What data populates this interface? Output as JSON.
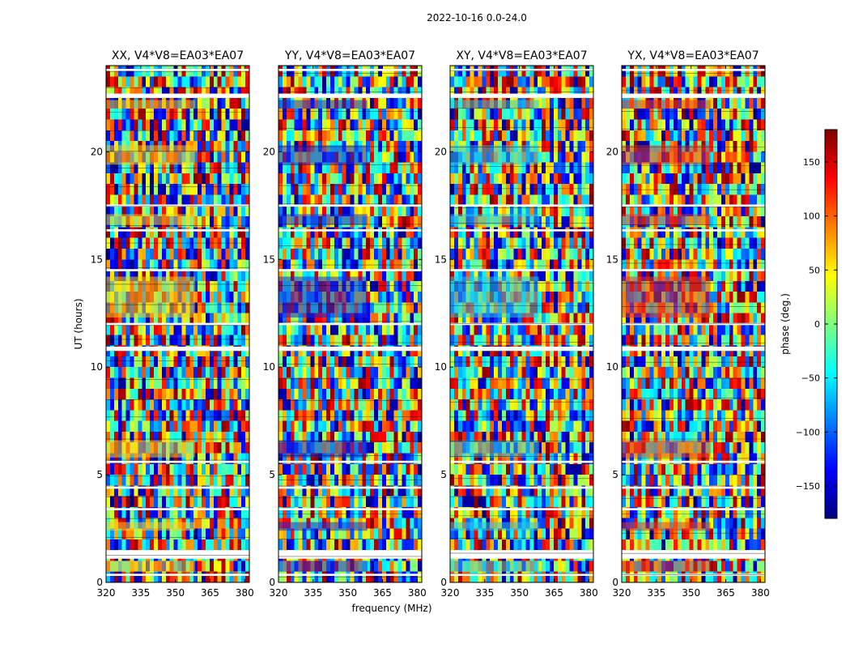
{
  "chart_data": {
    "type": "heatmap",
    "suptitle": "2022-10-16 0.0-24.0",
    "xlabel": "frequency (MHz)",
    "ylabel": "UT (hours)",
    "xlim": [
      320,
      382
    ],
    "ylim": [
      0,
      24
    ],
    "x_ticks": [
      320,
      335,
      350,
      365,
      380
    ],
    "y_ticks": [
      0,
      5,
      10,
      15,
      20
    ],
    "panels": [
      {
        "title": "XX, V4*V8=EA03*EA07",
        "tint": "#f5d020"
      },
      {
        "title": "YY, V4*V8=EA03*EA07",
        "tint": "#1a2ad8"
      },
      {
        "title": "XY, V4*V8=EA03*EA07",
        "tint": "#2ec4e0"
      },
      {
        "title": "YX, V4*V8=EA03*EA07",
        "tint": "#e03a2a"
      }
    ],
    "colorbar": {
      "label": "phase (deg.)",
      "range": [
        -180,
        180
      ],
      "ticks": [
        -150,
        -100,
        -50,
        0,
        50,
        100,
        150
      ],
      "tick_labels": [
        "−150",
        "−100",
        "−50",
        "0",
        "50",
        "100",
        "150"
      ],
      "colormap": "jet",
      "colors": [
        "#00007f",
        "#0000ff",
        "#007fff",
        "#00ffff",
        "#7fff7f",
        "#ffff00",
        "#ff7f00",
        "#ff0000",
        "#7f0000"
      ]
    },
    "flagged_ut_bands": [
      [
        0.3,
        0.4
      ],
      [
        1.1,
        1.5
      ],
      [
        3.35,
        3.45
      ],
      [
        4.35,
        4.45
      ],
      [
        5.55,
        5.65
      ],
      [
        10.75,
        10.95
      ],
      [
        11.95,
        12.05
      ],
      [
        14.45,
        14.55
      ],
      [
        16.3,
        16.4
      ],
      [
        17.45,
        17.55
      ],
      [
        22.5,
        22.7
      ],
      [
        23.75,
        23.85
      ]
    ],
    "dense_ut_bands": [
      [
        0.5,
        1.0
      ],
      [
        2.4,
        2.8
      ],
      [
        5.8,
        6.6
      ],
      [
        12.3,
        14.2
      ],
      [
        16.6,
        17.1
      ],
      [
        19.4,
        20.3
      ],
      [
        22.0,
        22.4
      ]
    ]
  }
}
